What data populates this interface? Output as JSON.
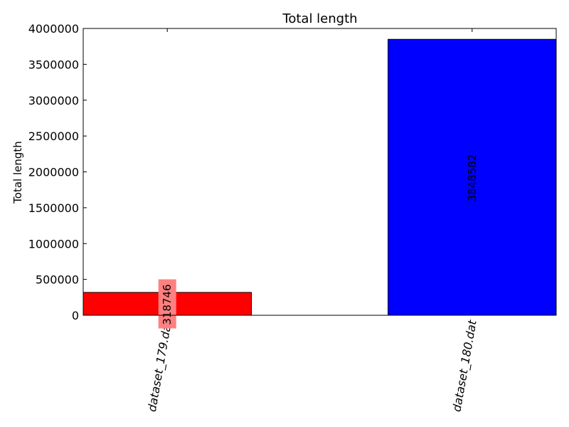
{
  "chart_data": {
    "type": "bar",
    "title": "Total length",
    "xlabel": "",
    "ylabel": "Total length",
    "categories": [
      "dataset_179.dat",
      "dataset_180.dat"
    ],
    "values": [
      318746,
      3848582
    ],
    "value_labels": [
      "318746",
      "3848582"
    ],
    "colors": [
      "#ff0000",
      "#0000ff"
    ],
    "value_label_highlight_colors": [
      "#ff8080",
      null
    ],
    "ylim": [
      0,
      4000000
    ],
    "yticks": [
      0,
      500000,
      1000000,
      1500000,
      2000000,
      2500000,
      3000000,
      3500000,
      4000000
    ],
    "ytick_labels": [
      "0",
      "500000",
      "1000000",
      "1500000",
      "2000000",
      "2500000",
      "3000000",
      "3500000",
      "4000000"
    ],
    "grid": false,
    "legend": "none"
  }
}
